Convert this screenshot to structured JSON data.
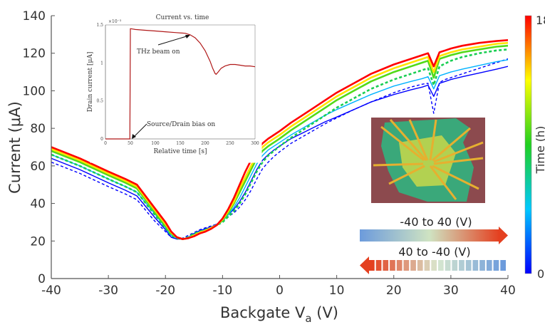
{
  "chart_data": {
    "type": "line",
    "xlabel_main": "Backgate V",
    "xlabel_sub": "a",
    "xlabel_unit": " (V)",
    "ylabel": "Current (μA)",
    "xlim": [
      -40,
      40
    ],
    "ylim": [
      0,
      140
    ],
    "xticks": [
      "-40",
      "-30",
      "-20",
      "-10",
      "0",
      "10",
      "20",
      "30",
      "40"
    ],
    "yticks": [
      "0",
      "20",
      "40",
      "60",
      "80",
      "100",
      "120",
      "140"
    ],
    "grid": false,
    "colorbar": {
      "label": "Time (h)",
      "min_label": "0",
      "max_label": "18",
      "colors": [
        "#0000ff",
        "#00c8ff",
        "#20d020",
        "#ffff00",
        "#ff0000"
      ]
    },
    "x": [
      -40,
      -35,
      -30,
      -27,
      -25,
      -22,
      -20,
      -19,
      -18,
      -17,
      -16,
      -15,
      -14,
      -13,
      -12,
      -11,
      -10,
      -9,
      -8,
      -7,
      -6,
      -5,
      -4,
      -3,
      -2,
      -1,
      0,
      2,
      4,
      6,
      8,
      10,
      13,
      16,
      20,
      23,
      25,
      26,
      27,
      28,
      29,
      30,
      32,
      35,
      38,
      40
    ],
    "series": [
      {
        "time_h": 0,
        "style": "solid",
        "values": [
          64,
          58,
          51,
          47,
          44,
          33,
          26,
          22,
          21,
          21,
          22,
          24,
          25.5,
          26.5,
          27.5,
          29,
          31,
          34,
          37,
          41,
          46,
          52,
          58,
          63,
          66,
          68.5,
          70.5,
          74.5,
          77.5,
          80.5,
          83.5,
          86,
          90,
          94,
          98,
          100.5,
          102,
          103,
          97,
          104,
          105,
          106,
          107.5,
          109.5,
          111.5,
          113
        ]
      },
      {
        "time_h": 0,
        "style": "dashed",
        "values": [
          62,
          56,
          49,
          45,
          42,
          31,
          25,
          22,
          21,
          21.5,
          23,
          24.5,
          26,
          27,
          28,
          29,
          30.5,
          33,
          35,
          38,
          42,
          47,
          53,
          58.5,
          62,
          65,
          67.5,
          72,
          75.5,
          79,
          82.5,
          85.5,
          90,
          94,
          99,
          102,
          103.5,
          104,
          88,
          104.5,
          106,
          107,
          109,
          112,
          115,
          117
        ]
      },
      {
        "time_h": 4,
        "style": "solid",
        "values": [
          66,
          60,
          53,
          49,
          46,
          35,
          27,
          23,
          21.5,
          21,
          22,
          23.5,
          25,
          26,
          27,
          28.5,
          30.5,
          34,
          38,
          43,
          49,
          55,
          61,
          65.5,
          68.5,
          70.5,
          72.5,
          76.5,
          80,
          83.5,
          87,
          90,
          94,
          98,
          102.5,
          105,
          106.5,
          107.5,
          101,
          108,
          109,
          110,
          111.5,
          113.5,
          115.5,
          116.5
        ]
      },
      {
        "time_h": 8,
        "style": "dashed",
        "values": [
          66,
          60,
          53,
          49,
          46,
          34.5,
          27,
          23,
          21.5,
          21,
          22,
          24,
          25,
          26,
          27,
          28.5,
          30,
          33,
          36,
          40,
          45,
          51,
          57,
          62,
          65.5,
          68,
          70.5,
          75,
          79,
          83,
          87,
          91,
          96,
          101,
          106,
          109,
          111,
          112,
          103,
          113,
          114.5,
          116,
          118,
          120,
          121.5,
          122
        ]
      },
      {
        "time_h": 10,
        "style": "solid",
        "values": [
          68,
          62,
          55,
          51,
          48,
          36,
          28,
          24,
          22,
          21,
          21.5,
          23,
          24.5,
          25.5,
          27,
          28.5,
          31,
          35,
          40,
          46,
          52,
          58,
          64,
          68,
          70.5,
          72.5,
          74.5,
          79,
          83,
          87,
          91,
          95,
          100,
          105,
          110,
          113,
          115,
          116,
          107,
          117,
          118,
          119,
          120.5,
          122,
          123.5,
          124
        ]
      },
      {
        "time_h": 14,
        "style": "solid",
        "values": [
          69,
          63,
          56,
          52,
          49,
          37,
          29,
          24.5,
          22,
          21,
          21.5,
          23,
          24.5,
          25.5,
          27,
          28.5,
          31.5,
          36,
          41,
          48,
          54,
          60,
          66,
          70,
          72.5,
          74.5,
          76.5,
          81,
          85,
          89,
          93,
          97,
          102,
          107,
          112,
          115,
          117,
          118,
          110,
          118.5,
          119.5,
          120.5,
          122,
          123.5,
          125,
          125.5
        ]
      },
      {
        "time_h": 18,
        "style": "solid",
        "values": [
          70,
          64,
          57,
          53,
          50,
          38,
          30,
          25,
          22,
          21,
          21.5,
          22.5,
          24,
          25,
          26.5,
          28.5,
          32,
          37,
          43,
          50,
          57,
          63,
          68,
          72,
          74.5,
          76.5,
          78.5,
          83,
          87,
          91,
          95,
          99,
          104,
          109,
          114,
          117,
          119,
          120,
          113,
          120.5,
          121.5,
          122.5,
          124,
          125.5,
          126.5,
          127
        ]
      }
    ],
    "inset": {
      "title": "Current vs. time",
      "xlabel": "Relative time [s]",
      "ylabel": "Drain current [μA]",
      "y_exponent": "×10⁻³",
      "xlim": [
        0,
        300
      ],
      "ylim": [
        0,
        1.5
      ],
      "xticks": [
        "0",
        "50",
        "100",
        "150",
        "200",
        "250",
        "300"
      ],
      "yticks": [
        "0",
        "0.5",
        "1",
        "1.5"
      ],
      "annotation_on": "THz beam on",
      "annotation_bias": "Source/Drain bias on",
      "t": [
        0,
        49,
        50,
        51,
        60,
        80,
        100,
        120,
        140,
        160,
        170,
        180,
        190,
        200,
        210,
        215,
        220,
        222,
        226,
        232,
        240,
        250,
        260,
        270,
        280,
        290,
        300
      ],
      "current": [
        0,
        0,
        1.45,
        1.45,
        1.44,
        1.43,
        1.42,
        1.41,
        1.4,
        1.39,
        1.37,
        1.33,
        1.26,
        1.16,
        1.02,
        0.93,
        0.86,
        0.85,
        0.88,
        0.93,
        0.96,
        0.98,
        0.98,
        0.97,
        0.96,
        0.96,
        0.95
      ],
      "color": "#b01818"
    },
    "sweep_arrows": {
      "forward_label": "-40 to 40 (V)",
      "backward_label": "40 to -40 (V)"
    },
    "image_label": "device-micrograph"
  }
}
